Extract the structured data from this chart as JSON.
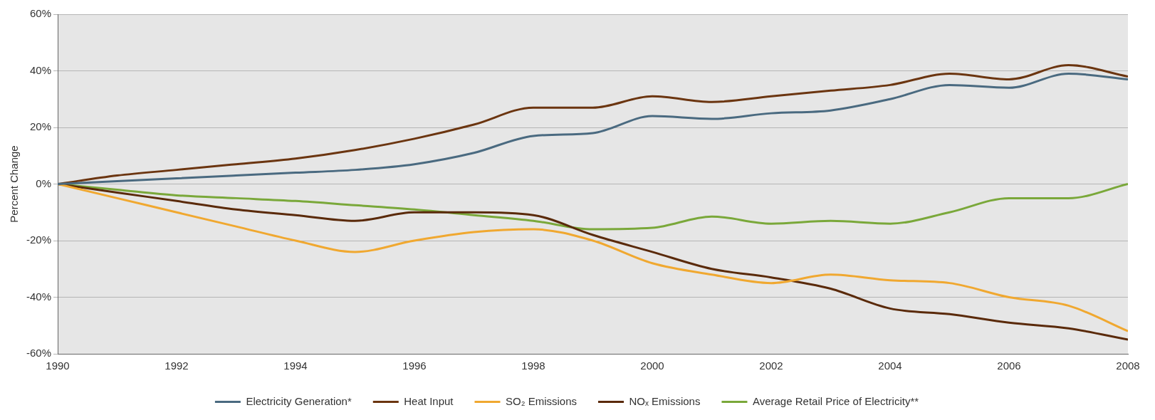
{
  "chart_data": {
    "type": "line",
    "ylabel": "Percent Change",
    "x": [
      1990,
      1991,
      1992,
      1993,
      1994,
      1995,
      1996,
      1997,
      1998,
      1999,
      2000,
      2001,
      2002,
      2003,
      2004,
      2005,
      2006,
      2007,
      2008
    ],
    "series": [
      {
        "name": "Electricity Generation*",
        "color": "#4a6a80",
        "values": [
          0,
          1,
          2,
          3,
          4,
          5,
          7,
          11,
          17,
          18,
          24,
          23,
          25,
          26,
          30,
          35,
          34,
          39,
          37
        ]
      },
      {
        "name": "Heat Input",
        "color": "#6b3510",
        "values": [
          0,
          3,
          5,
          7,
          9,
          12,
          16,
          21,
          27,
          27,
          31,
          29,
          31,
          33,
          35,
          39,
          37,
          42,
          38
        ]
      },
      {
        "name": "SO₂ Emissions",
        "color": "#f0a830",
        "values": [
          0,
          -5,
          -10,
          -15,
          -20,
          -24,
          -20,
          -17,
          -16,
          -20,
          -28,
          -32,
          -35,
          -32,
          -34,
          -35,
          -40,
          -43,
          -52
        ]
      },
      {
        "name": "NOₓ Emissions",
        "color": "#5a2a0a",
        "values": [
          0,
          -3,
          -6,
          -9,
          -11,
          -13,
          -10,
          -10,
          -11,
          -18,
          -24,
          -30,
          -33,
          -37,
          -44,
          -46,
          -49,
          -51,
          -55
        ]
      },
      {
        "name": "Average Retail Price of Electricity**",
        "color": "#7aa83a",
        "values": [
          0,
          -2,
          -4,
          -5,
          -6,
          -7.5,
          -9,
          -11,
          -13,
          -16,
          -15.5,
          -11.5,
          -14,
          -13,
          -14,
          -10,
          -5,
          -5,
          0
        ]
      }
    ],
    "xlim": [
      1990,
      2008
    ],
    "xticks": [
      1990,
      1992,
      1994,
      1996,
      1998,
      2000,
      2002,
      2004,
      2006,
      2008
    ],
    "ylim": [
      -60,
      60
    ],
    "yticks": [
      {
        "value": -60,
        "label": "-60%"
      },
      {
        "value": -40,
        "label": "-40%"
      },
      {
        "value": -20,
        "label": "-20%"
      },
      {
        "value": 0,
        "label": "0%"
      },
      {
        "value": 20,
        "label": "20%"
      },
      {
        "value": 40,
        "label": "40%"
      },
      {
        "value": 60,
        "label": "60%"
      }
    ],
    "grid": "y",
    "legend": "bottom",
    "marker": "none",
    "line_style": "solid"
  }
}
